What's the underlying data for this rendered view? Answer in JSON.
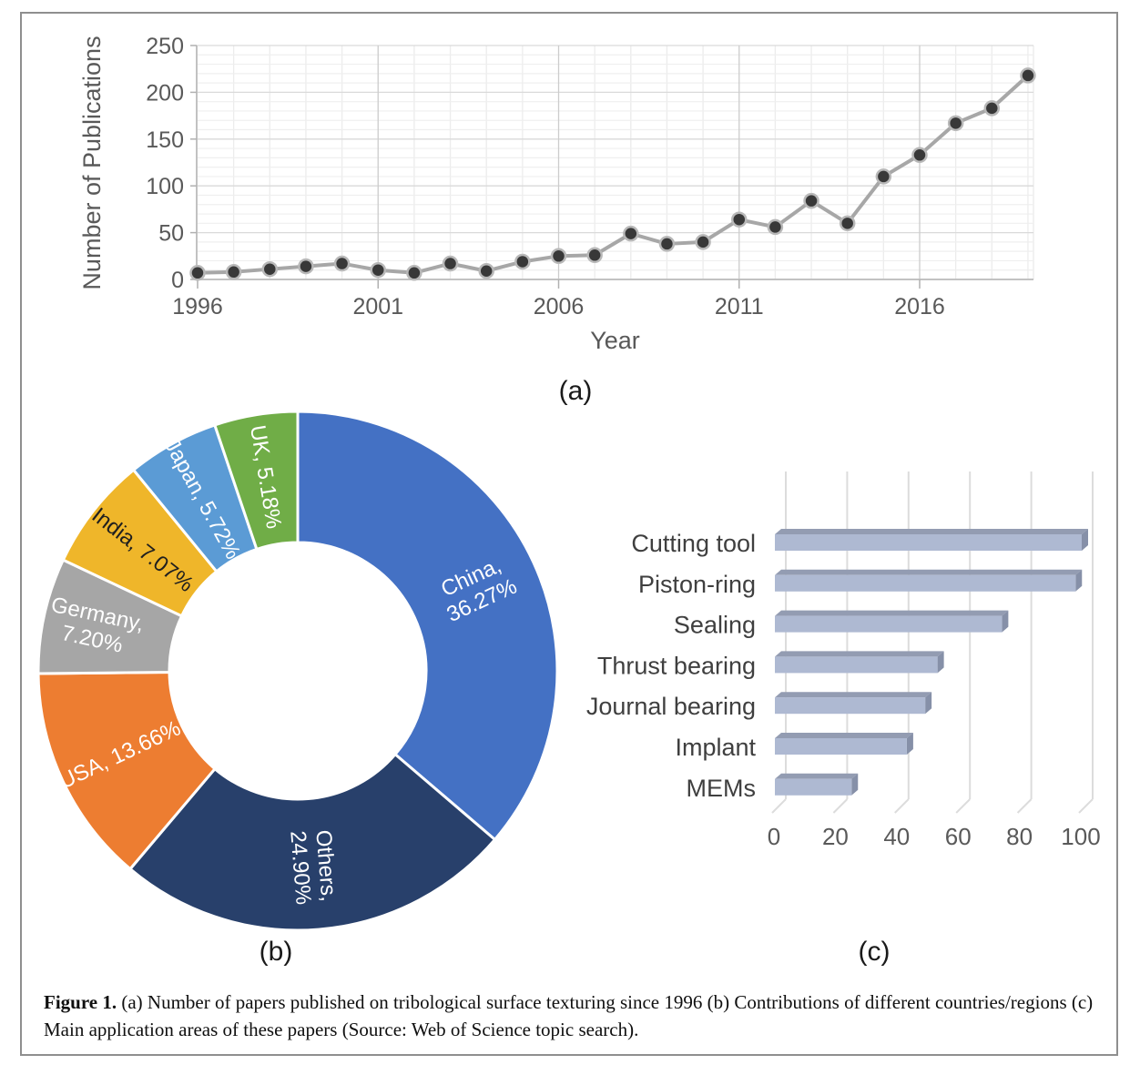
{
  "figure": {
    "caption_label": "Figure 1.",
    "caption_text": " (a) Number of papers published on tribological surface texturing since 1996 (b) Contributions of different countries/regions (c) Main application areas of these papers (Source: Web of Science topic search)."
  },
  "chart_data": [
    {
      "type": "line",
      "panel_label": "(a)",
      "title": "",
      "xlabel": "Year",
      "ylabel": "Number of Publications",
      "x": [
        1996,
        1997,
        1998,
        1999,
        2000,
        2001,
        2002,
        2003,
        2004,
        2005,
        2006,
        2007,
        2008,
        2009,
        2010,
        2011,
        2012,
        2013,
        2014,
        2015,
        2016,
        2017,
        2018,
        2019
      ],
      "y": [
        7,
        8,
        11,
        14,
        17,
        10,
        7,
        17,
        9,
        19,
        25,
        26,
        49,
        38,
        40,
        64,
        56,
        84,
        60,
        110,
        133,
        167,
        183,
        218
      ],
      "ylim": [
        0,
        250
      ],
      "yticks": [
        0,
        50,
        100,
        150,
        200,
        250
      ],
      "xticks": [
        1996,
        2001,
        2006,
        2011,
        2016
      ],
      "grid": {
        "on": true,
        "y_minor_step": 10,
        "x_minor_step": 1
      },
      "colors": {
        "line": "#a7a7a7",
        "marker_fill": "#383838",
        "marker_ring": "#b8b8b8",
        "grid_minor": "#efefef",
        "grid_major": "#dadada",
        "vgrid_minor": "#ececec",
        "vgrid_major": "#cccccc",
        "axis_line": "#c2c2c2",
        "tick": "#b0b0b0",
        "axis_text": "#595959"
      }
    },
    {
      "type": "pie",
      "panel_label": "(b)",
      "donut": true,
      "start_angle_deg": 0,
      "direction": "clockwise",
      "separator_color": "#ffffff",
      "slices": [
        {
          "label": "China",
          "value": 36.27,
          "display": "China, 36.27%",
          "lines": [
            "China,",
            "36.27%"
          ],
          "color": "#4471c4",
          "text_color": "#ffffff"
        },
        {
          "label": "Others",
          "value": 24.9,
          "display": "Others, 24.90%",
          "lines": [
            "Others,",
            "24.90%"
          ],
          "color": "#28406b",
          "text_color": "#ffffff"
        },
        {
          "label": "USA",
          "value": 13.66,
          "display": "USA, 13.66%",
          "lines": [
            "USA, 13.66%"
          ],
          "color": "#ed7d31",
          "text_color": "#ffffff"
        },
        {
          "label": "Germany",
          "value": 7.2,
          "display": "Germany, 7.20%",
          "lines": [
            "Germany,",
            "7.20%"
          ],
          "color": "#a6a6a6",
          "text_color": "#ffffff"
        },
        {
          "label": "India",
          "value": 7.07,
          "display": "India, 7.07%",
          "lines": [
            "India, 7.07%"
          ],
          "color": "#efb62a",
          "text_color": "#1f1f1f"
        },
        {
          "label": "Japan",
          "value": 5.72,
          "display": "Japan, 5.72%",
          "lines": [
            "Japan, 5.72%"
          ],
          "color": "#5b9bd5",
          "text_color": "#ffffff"
        },
        {
          "label": "UK",
          "value": 5.18,
          "display": "UK, 5.18%",
          "lines": [
            "UK, 5.18%"
          ],
          "color": "#70ad47",
          "text_color": "#ffffff"
        }
      ]
    },
    {
      "type": "bar",
      "panel_label": "(c)",
      "orientation": "horizontal",
      "style": "3d",
      "categories": [
        "Cutting tool",
        "Piston-ring",
        "Sealing",
        "Thrust bearing",
        "Journal bearing",
        "Implant",
        "MEMs"
      ],
      "values": [
        100,
        98,
        74,
        53,
        49,
        43,
        25
      ],
      "xlim": [
        0,
        100
      ],
      "xticks": [
        0,
        20,
        40,
        60,
        80,
        100
      ],
      "grid": {
        "on": true
      },
      "colors": {
        "bar_face": "#aeb9d2",
        "bar_top": "#939cb2",
        "bar_side": "#8690a8",
        "grid": "#dcdcdc",
        "axis_text": "#595959",
        "category_text": "#3f3f3f"
      }
    }
  ]
}
